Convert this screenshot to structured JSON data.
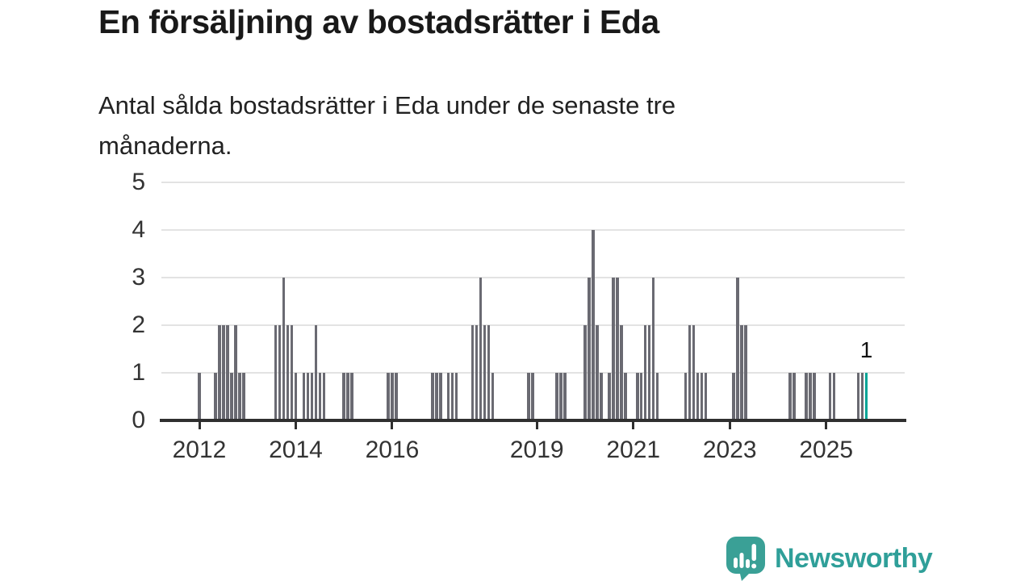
{
  "title": "En försäljning av bostadsrätter i Eda",
  "subtitle": "Antal sålda bostadsrätter i Eda under de senaste tre\nmånaderna.",
  "annotation": {
    "last_value_label": "1"
  },
  "logo": {
    "text": "Newsworthy",
    "icon": "speech-bubble-bar-chart-exclamation"
  },
  "colors": {
    "bar": "#6a6a72",
    "highlight": "#00a496",
    "axis": "#2f2f2f",
    "grid": "#e3e3e3",
    "text": "#333333",
    "logo_teal": "#3aa096",
    "logo_text_teal": "#2f9f99"
  },
  "chart_data": {
    "type": "bar",
    "title": "En försäljning av bostadsrätter i Eda",
    "subtitle": "Antal sålda bostadsrätter i Eda under de senaste tre månaderna.",
    "xlabel": "",
    "ylabel": "",
    "ylim": [
      0,
      5
    ],
    "grid": "horizontal",
    "y_ticks": [
      0,
      1,
      2,
      3,
      4,
      5
    ],
    "x_unit": "months_since_2012_01",
    "x_ticks": [
      {
        "label": "2012",
        "m": 0
      },
      {
        "label": "2014",
        "m": 24
      },
      {
        "label": "2016",
        "m": 48
      },
      {
        "label": "2019",
        "m": 84
      },
      {
        "label": "2021",
        "m": 108
      },
      {
        "label": "2023",
        "m": 132
      },
      {
        "label": "2025",
        "m": 156
      }
    ],
    "bars": [
      [
        0,
        1
      ],
      [
        4,
        1
      ],
      [
        5,
        2
      ],
      [
        6,
        2
      ],
      [
        7,
        2
      ],
      [
        8,
        1
      ],
      [
        9,
        2
      ],
      [
        10,
        1
      ],
      [
        11,
        1
      ],
      [
        19,
        2
      ],
      [
        20,
        2
      ],
      [
        21,
        3
      ],
      [
        22,
        2
      ],
      [
        23,
        2
      ],
      [
        24,
        1
      ],
      [
        26,
        1
      ],
      [
        27,
        1
      ],
      [
        28,
        1
      ],
      [
        29,
        2
      ],
      [
        30,
        1
      ],
      [
        31,
        1
      ],
      [
        36,
        1
      ],
      [
        37,
        1
      ],
      [
        38,
        1
      ],
      [
        47,
        1
      ],
      [
        48,
        1
      ],
      [
        49,
        1
      ],
      [
        58,
        1
      ],
      [
        59,
        1
      ],
      [
        60,
        1
      ],
      [
        62,
        1
      ],
      [
        63,
        1
      ],
      [
        64,
        1
      ],
      [
        68,
        2
      ],
      [
        69,
        2
      ],
      [
        70,
        3
      ],
      [
        71,
        2
      ],
      [
        72,
        2
      ],
      [
        73,
        1
      ],
      [
        82,
        1
      ],
      [
        83,
        1
      ],
      [
        89,
        1
      ],
      [
        90,
        1
      ],
      [
        91,
        1
      ],
      [
        96,
        2
      ],
      [
        97,
        3
      ],
      [
        98,
        4
      ],
      [
        99,
        2
      ],
      [
        100,
        1
      ],
      [
        102,
        1
      ],
      [
        103,
        3
      ],
      [
        104,
        3
      ],
      [
        105,
        2
      ],
      [
        106,
        1
      ],
      [
        109,
        1
      ],
      [
        110,
        1
      ],
      [
        111,
        2
      ],
      [
        112,
        2
      ],
      [
        113,
        3
      ],
      [
        114,
        1
      ],
      [
        121,
        1
      ],
      [
        122,
        2
      ],
      [
        123,
        2
      ],
      [
        124,
        1
      ],
      [
        125,
        1
      ],
      [
        126,
        1
      ],
      [
        133,
        1
      ],
      [
        134,
        3
      ],
      [
        135,
        2
      ],
      [
        136,
        2
      ],
      [
        147,
        1
      ],
      [
        148,
        1
      ],
      [
        151,
        1
      ],
      [
        152,
        1
      ],
      [
        153,
        1
      ],
      [
        157,
        1
      ],
      [
        158,
        1
      ],
      [
        164,
        1
      ],
      [
        165,
        1
      ],
      [
        166,
        1
      ]
    ],
    "highlight_m": 166,
    "highlight_value_label": "1",
    "legend": []
  }
}
